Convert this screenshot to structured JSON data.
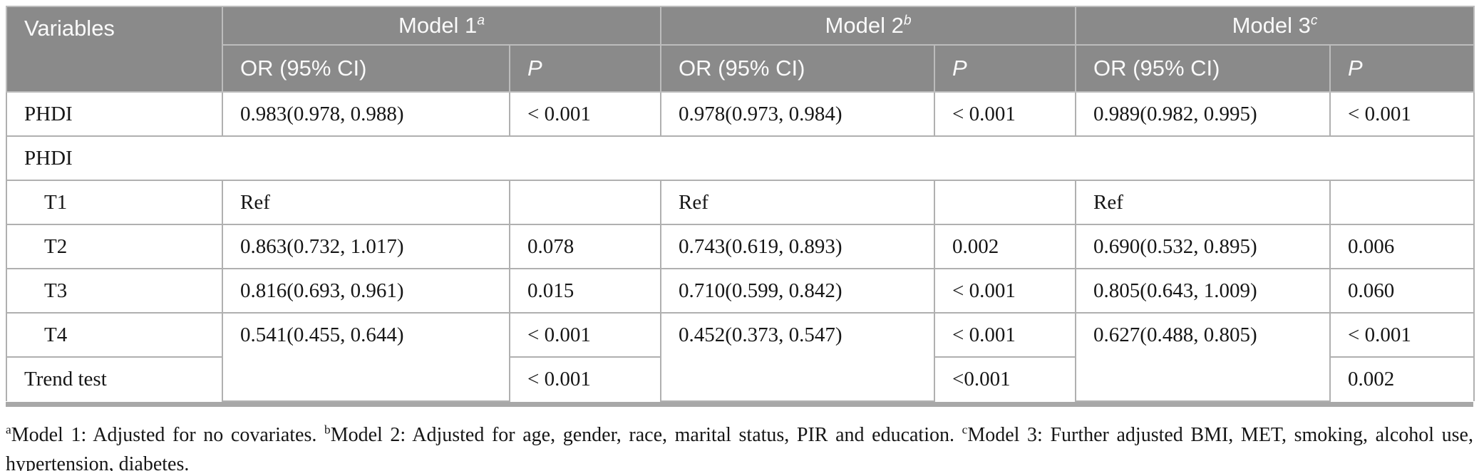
{
  "colors": {
    "header_bg": "#8a8a8a",
    "header_text": "#fafafa",
    "header_border": "#bcbcbc",
    "body_border": "#b0b0b0",
    "bottom_bar": "#a8a8a8",
    "text": "#161616"
  },
  "table": {
    "header": {
      "variables_label": "Variables",
      "models": [
        {
          "label": "Model 1",
          "sup": "a"
        },
        {
          "label": "Model 2",
          "sup": "b"
        },
        {
          "label": "Model 3",
          "sup": "c"
        }
      ],
      "or_label": "OR (95% CI)",
      "p_label": "P"
    },
    "rows": [
      {
        "label": "PHDI",
        "indent": false,
        "style": "data",
        "cells": [
          "0.983(0.978, 0.988)",
          "< 0.001",
          "0.978(0.973, 0.984)",
          "< 0.001",
          "0.989(0.982, 0.995)",
          "< 0.001"
        ]
      },
      {
        "label": "PHDI",
        "indent": false,
        "style": "group"
      },
      {
        "label": "T1",
        "indent": true,
        "style": "data",
        "cells": [
          "Ref",
          "",
          "Ref",
          "",
          "Ref",
          ""
        ]
      },
      {
        "label": "T2",
        "indent": true,
        "style": "data",
        "cells": [
          "0.863(0.732, 1.017)",
          "0.078",
          "0.743(0.619, 0.893)",
          "0.002",
          "0.690(0.532, 0.895)",
          "0.006"
        ]
      },
      {
        "label": "T3",
        "indent": true,
        "style": "data",
        "cells": [
          "0.816(0.693, 0.961)",
          "0.015",
          "0.710(0.599, 0.842)",
          "< 0.001",
          "0.805(0.643, 1.009)",
          "0.060"
        ]
      },
      {
        "label": "T4",
        "indent": true,
        "style": "orspan",
        "cells": [
          "0.541(0.455, 0.644)",
          "< 0.001",
          "0.452(0.373, 0.547)",
          "< 0.001",
          "0.627(0.488, 0.805)",
          "< 0.001"
        ]
      },
      {
        "label": "Trend test",
        "indent": false,
        "style": "trend",
        "cells": [
          "< 0.001",
          "<0.001",
          "0.002"
        ]
      }
    ]
  },
  "footnote": {
    "segments": [
      {
        "sup": "a",
        "text": "Model 1: Adjusted for no covariates. "
      },
      {
        "sup": "b",
        "text": "Model 2: Adjusted for age, gender, race, marital status, PIR and education. "
      },
      {
        "sup": "c",
        "text": "Model 3: Further adjusted BMI, MET, smoking, alcohol use, hypertension, diabetes."
      }
    ]
  }
}
